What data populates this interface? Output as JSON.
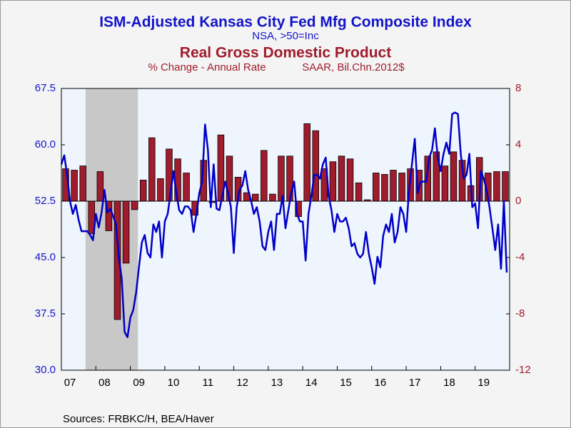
{
  "chart_data": {
    "type": "combo",
    "title": "ISM-Adjusted Kansas City Fed Mfg Composite Index",
    "subtitle": "NSA, >50=Inc",
    "title2": "Real Gross Domestic Product",
    "subtitle2": [
      "% Change - Annual Rate",
      "SAAR, Bil.Chn.2012$"
    ],
    "source": "Sources:  FRBKC/H, BEA/Haver",
    "xlim": [
      2007,
      2020
    ],
    "xticks": [
      {
        "value": 2007,
        "label": "07"
      },
      {
        "value": 2008,
        "label": "08"
      },
      {
        "value": 2009,
        "label": "09"
      },
      {
        "value": 2010,
        "label": "10"
      },
      {
        "value": 2011,
        "label": "11"
      },
      {
        "value": 2012,
        "label": "12"
      },
      {
        "value": 2013,
        "label": "13"
      },
      {
        "value": 2014,
        "label": "14"
      },
      {
        "value": 2015,
        "label": "15"
      },
      {
        "value": 2016,
        "label": "16"
      },
      {
        "value": 2017,
        "label": "17"
      },
      {
        "value": 2018,
        "label": "18"
      },
      {
        "value": 2019,
        "label": "19"
      }
    ],
    "ylim": [
      30,
      67.5
    ],
    "yticks": [
      {
        "value": 30,
        "label": "30.0"
      },
      37.5,
      {
        "value": 45,
        "label": "45.0"
      },
      52.5,
      {
        "value": 60,
        "label": "60.0"
      },
      67.5
    ],
    "y2lim": [
      -12,
      8
    ],
    "y2ticks": [
      -12,
      -8,
      -4,
      0,
      4,
      8
    ],
    "shaded_regions": [
      [
        2007.7,
        2009.22
      ]
    ],
    "series": [
      {
        "name": "ISM-Adjusted Kansas City Fed Mfg Composite Index",
        "type": "line",
        "color": "#0000c8",
        "start": 2007,
        "step": 0.08333333333333333,
        "values": [
          57.4,
          58.6,
          56.0,
          52.5,
          50.8,
          52.0,
          50.0,
          48.5,
          48.5,
          48.5,
          48.0,
          47.3,
          50.8,
          49.0,
          51.0,
          54.0,
          51.0,
          51.5,
          50.5,
          49.5,
          45.0,
          42.2,
          35.1,
          34.4,
          37.0,
          38.0,
          40.3,
          43.7,
          47.0,
          48.0,
          45.6,
          45.0,
          49.4,
          48.4,
          49.8,
          45.0,
          49.8,
          50.8,
          53.6,
          56.5,
          53.6,
          51.3,
          50.8,
          51.8,
          51.8,
          51.3,
          48.4,
          50.8,
          53.6,
          55.1,
          62.7,
          59.3,
          51.7,
          57.4,
          51.5,
          51.3,
          53.2,
          55.1,
          53.6,
          51.7,
          45.6,
          51.7,
          54.0,
          54.6,
          56.5,
          54.0,
          52.6,
          50.8,
          51.7,
          49.8,
          46.5,
          46.0,
          48.4,
          49.8,
          46.0,
          50.8,
          50.8,
          53.2,
          48.9,
          51.3,
          53.6,
          55.1,
          50.8,
          49.8,
          49.8,
          44.6,
          50.8,
          53.2,
          56.0,
          56.0,
          55.5,
          57.4,
          58.3,
          53.2,
          51.3,
          48.4,
          50.8,
          49.8,
          49.8,
          50.3,
          48.9,
          46.5,
          46.9,
          45.5,
          45.0,
          45.5,
          48.4,
          45.5,
          43.7,
          41.5,
          45.1,
          43.7,
          47.9,
          49.4,
          48.4,
          50.8,
          47.0,
          48.4,
          51.7,
          50.8,
          48.4,
          54.0,
          57.4,
          60.8,
          53.6,
          55.1,
          55.1,
          55.1,
          58.3,
          59.3,
          62.2,
          58.3,
          56.5,
          58.8,
          60.3,
          58.8,
          64.1,
          64.3,
          64.1,
          58.8,
          55.5,
          56.0,
          58.8,
          51.7,
          52.2,
          48.9,
          56.5,
          55.5,
          54.0,
          51.7,
          48.9,
          46.0,
          49.4,
          43.5,
          52.5,
          43.0
        ]
      },
      {
        "name": "Real Gross Domestic Product",
        "type": "bar",
        "axis": "y2",
        "color": "#a01c2c",
        "start": 2007,
        "step": 0.25,
        "values": [
          2.3,
          2.2,
          2.5,
          -2.3,
          2.1,
          -2.1,
          -8.4,
          -4.4,
          -0.6,
          1.5,
          4.5,
          1.6,
          3.7,
          3.0,
          2.0,
          -1.0,
          2.9,
          -0.1,
          4.7,
          3.2,
          1.7,
          0.6,
          0.5,
          3.6,
          0.5,
          3.2,
          3.2,
          -1.1,
          5.5,
          5.0,
          2.3,
          2.8,
          3.2,
          3.0,
          1.3,
          0.1,
          2.0,
          1.9,
          2.2,
          2.0,
          2.3,
          2.2,
          3.2,
          3.5,
          2.5,
          3.5,
          2.9,
          1.1,
          3.1,
          2.0,
          2.1,
          2.1
        ]
      }
    ]
  }
}
